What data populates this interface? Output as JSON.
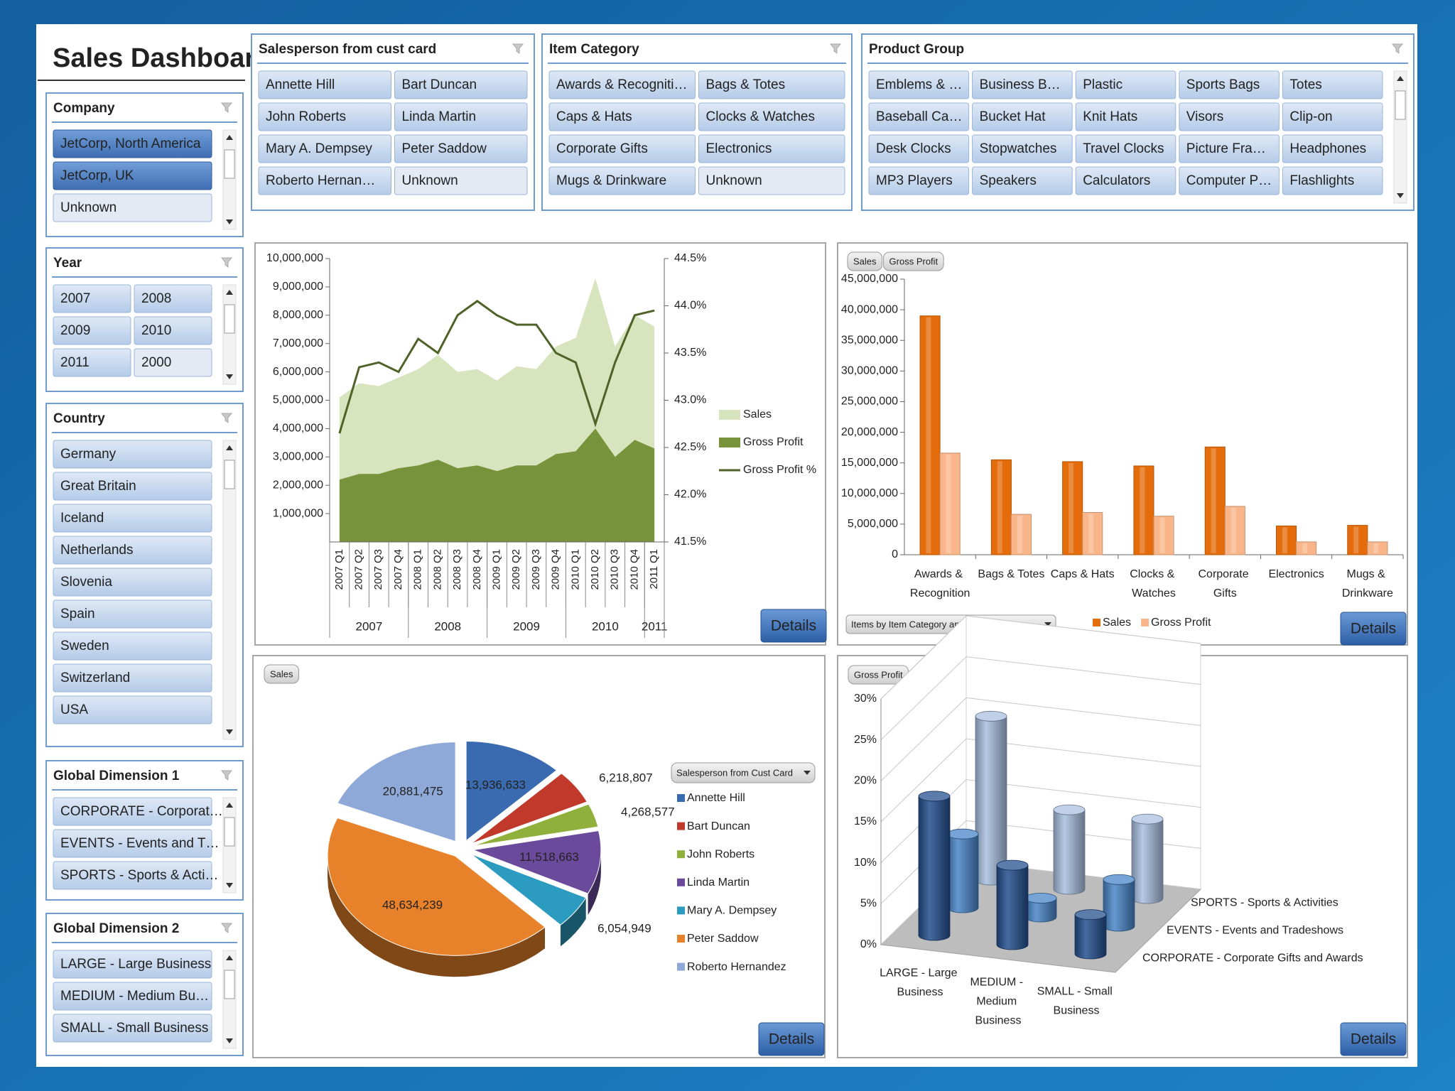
{
  "title": "Sales Dashboard",
  "slicers": [
    {
      "title": "Salesperson from cust card",
      "items": [
        "Annette Hill",
        "Bart Duncan",
        "John Roberts",
        "Linda Martin",
        "Mary A. Dempsey",
        "Peter Saddow",
        "Roberto Hernan…",
        "Unknown"
      ],
      "states": [
        "available",
        "available",
        "available",
        "available",
        "available",
        "available",
        "available",
        "empty"
      ]
    },
    {
      "title": "Item Category",
      "items": [
        "Awards & Recogniti…",
        "Bags & Totes",
        "Caps & Hats",
        "Clocks & Watches",
        "Corporate Gifts",
        "Electronics",
        "Mugs & Drinkware",
        "Unknown"
      ],
      "states": [
        "available",
        "available",
        "available",
        "available",
        "available",
        "available",
        "available",
        "empty"
      ]
    },
    {
      "title": "Product Group",
      "items": [
        "Emblems & …",
        "Business B…",
        "Plastic",
        "Sports Bags",
        "Totes",
        "Baseball Ca…",
        "Bucket Hat",
        "Knit Hats",
        "Visors",
        "Clip-on",
        "Desk Clocks",
        "Stopwatches",
        "Travel Clocks",
        "Picture Fra…",
        "Headphones",
        "MP3 Players",
        "Speakers",
        "Calculators",
        "Computer P…",
        "Flashlights"
      ],
      "states": [
        "available",
        "available",
        "available",
        "available",
        "available",
        "available",
        "available",
        "available",
        "available",
        "available",
        "available",
        "available",
        "available",
        "available",
        "available",
        "available",
        "available",
        "available",
        "available",
        "available"
      ]
    },
    {
      "title": "Company",
      "items": [
        "JetCorp, North America",
        "JetCorp, UK",
        "Unknown"
      ],
      "states": [
        "selected",
        "selected",
        "empty"
      ]
    },
    {
      "title": "Year",
      "items": [
        "2007",
        "2008",
        "2009",
        "2010",
        "2011",
        "2000"
      ],
      "states": [
        "available",
        "available",
        "available",
        "available",
        "available",
        "empty"
      ]
    },
    {
      "title": "Country",
      "items": [
        "Germany",
        "Great Britain",
        "Iceland",
        "Netherlands",
        "Slovenia",
        "Spain",
        "Sweden",
        "Switzerland",
        "USA"
      ],
      "states": [
        "available",
        "available",
        "available",
        "available",
        "available",
        "available",
        "available",
        "available",
        "available"
      ]
    },
    {
      "title": "Global Dimension 1",
      "items": [
        "CORPORATE - Corporat…",
        "EVENTS - Events and T…",
        "SPORTS - Sports & Acti…"
      ],
      "states": [
        "available",
        "available",
        "available"
      ]
    },
    {
      "title": "Global Dimension 2",
      "items": [
        "LARGE - Large Business",
        "MEDIUM - Medium Bu…",
        "SMALL - Small Business"
      ],
      "states": [
        "available",
        "available",
        "available"
      ]
    }
  ],
  "chart_data": [
    {
      "type": "area_line",
      "button": "Details",
      "categories": [
        "2007 Q1",
        "2007 Q2",
        "2007 Q3",
        "2007 Q4",
        "2008 Q1",
        "2008 Q2",
        "2008 Q3",
        "2008 Q4",
        "2009 Q1",
        "2009 Q2",
        "2009 Q3",
        "2009 Q4",
        "2010 Q1",
        "2010 Q2",
        "2010 Q3",
        "2010 Q4",
        "2011 Q1"
      ],
      "groups": [
        "2007",
        "2008",
        "2009",
        "2010",
        "2011"
      ],
      "series": [
        {
          "name": "Sales",
          "kind": "area",
          "color": "#d7e4bd",
          "values": [
            5100000,
            5600000,
            5500000,
            5800000,
            6100000,
            6600000,
            6000000,
            6100000,
            5700000,
            6200000,
            6100000,
            6900000,
            7200000,
            9300000,
            6900000,
            8000000,
            7600000
          ]
        },
        {
          "name": "Gross Profit",
          "kind": "area",
          "color": "#77933c",
          "values": [
            2200000,
            2400000,
            2400000,
            2600000,
            2700000,
            2900000,
            2600000,
            2700000,
            2500000,
            2700000,
            2700000,
            3100000,
            3200000,
            4000000,
            3000000,
            3600000,
            3300000
          ]
        },
        {
          "name": "Gross Profit %",
          "kind": "line",
          "axis": "y2",
          "color": "#4f6228",
          "values": [
            42.65,
            43.35,
            43.4,
            43.3,
            43.65,
            43.5,
            43.9,
            44.05,
            43.9,
            43.8,
            43.8,
            43.5,
            43.4,
            42.75,
            43.4,
            43.9,
            43.95
          ]
        }
      ],
      "ylim": [
        0,
        10000000
      ],
      "yticks": [
        {
          "value": 1000000,
          "label": "1,000,000"
        },
        {
          "value": 2000000,
          "label": "2,000,000"
        },
        {
          "value": 3000000,
          "label": "3,000,000"
        },
        {
          "value": 4000000,
          "label": "4,000,000"
        },
        {
          "value": 5000000,
          "label": "5,000,000"
        },
        {
          "value": 6000000,
          "label": "6,000,000"
        },
        {
          "value": 7000000,
          "label": "7,000,000"
        },
        {
          "value": 8000000,
          "label": "8,000,000"
        },
        {
          "value": 9000000,
          "label": "9,000,000"
        },
        {
          "value": 10000000,
          "label": "10,000,000"
        }
      ],
      "y2lim": [
        41.5,
        44.5
      ],
      "y2ticks": [
        {
          "value": 41.5,
          "label": "41.5%"
        },
        {
          "value": 42.0,
          "label": "42.0%"
        },
        {
          "value": 42.5,
          "label": "42.5%"
        },
        {
          "value": 43.0,
          "label": "43.0%"
        },
        {
          "value": 43.5,
          "label": "43.5%"
        },
        {
          "value": 44.0,
          "label": "44.0%"
        },
        {
          "value": 44.5,
          "label": "44.5%"
        }
      ]
    },
    {
      "type": "bar",
      "button": "Details",
      "field_buttons": [
        "Sales",
        "Gross Profit"
      ],
      "dropdown": "Items by Item Category and Product Group",
      "categories": [
        "Awards & Recognition",
        "Bags & Totes",
        "Caps & Hats",
        "Clocks & Watches",
        "Corporate Gifts",
        "Electronics",
        "Mugs & Drinkware"
      ],
      "series": [
        {
          "name": "Sales",
          "color": "#e46c0a",
          "values": [
            39000000,
            15500000,
            15200000,
            14500000,
            17600000,
            4700000,
            4800000
          ]
        },
        {
          "name": "Gross Profit",
          "color": "#f9b68a",
          "values": [
            16600000,
            6600000,
            6900000,
            6300000,
            7900000,
            2100000,
            2100000
          ]
        }
      ],
      "ylim": [
        0,
        45000000
      ],
      "yticks": [
        0,
        {
          "value": 5000000,
          "label": "5,000,000"
        },
        {
          "value": 10000000,
          "label": "10,000,000"
        },
        {
          "value": 15000000,
          "label": "15,000,000"
        },
        {
          "value": 20000000,
          "label": "20,000,000"
        },
        {
          "value": 25000000,
          "label": "25,000,000"
        },
        {
          "value": 30000000,
          "label": "30,000,000"
        },
        {
          "value": 35000000,
          "label": "35,000,000"
        },
        {
          "value": 40000000,
          "label": "40,000,000"
        },
        {
          "value": 45000000,
          "label": "45,000,000"
        }
      ]
    },
    {
      "type": "pie",
      "button": "Details",
      "field_buttons": [
        "Sales"
      ],
      "legend_title": "Salesperson from Cust Card",
      "categories": [
        "Annette Hill",
        "Bart Duncan",
        "John Roberts",
        "Linda Martin",
        "Mary A. Dempsey",
        "Peter Saddow",
        "Roberto Hernandez"
      ],
      "values": [
        13936633,
        6218807,
        4268577,
        11518663,
        6054949,
        48634239,
        20881475
      ],
      "value_labels": [
        "13,936,633",
        "6,218,807",
        "4,268,577",
        "11,518,663",
        "6,054,949",
        "48,634,239",
        "20,881,475"
      ],
      "colors": [
        "#3a6bb0",
        "#c0392b",
        "#8fb03a",
        "#6b4a9c",
        "#2b9bbf",
        "#e8822a",
        "#8ea9d8"
      ]
    },
    {
      "type": "bar3d",
      "button": "Details",
      "field_buttons": [
        "Gross Profit"
      ],
      "categories": [
        "LARGE - Large Business",
        "MEDIUM - Medium Business",
        "SMALL - Small Business"
      ],
      "series": [
        {
          "name": "CORPORATE - Corporate Gifts and Awards",
          "color": "#25508f",
          "values": [
            17,
            9.7,
            4.8
          ]
        },
        {
          "name": "EVENTS - Events and Tradeshows",
          "color": "#4a86c8",
          "values": [
            9,
            2.3,
            5.7
          ]
        },
        {
          "name": "SPORTS - Sports & Activities",
          "color": "#a9c0e0",
          "values": [
            20,
            9.7,
            9.7
          ]
        }
      ],
      "ylim": [
        0,
        30
      ],
      "yticks": [
        {
          "value": 0,
          "label": "0%"
        },
        {
          "value": 5,
          "label": "5%"
        },
        {
          "value": 10,
          "label": "10%"
        },
        {
          "value": 15,
          "label": "15%"
        },
        {
          "value": 20,
          "label": "20%"
        },
        {
          "value": 25,
          "label": "25%"
        },
        {
          "value": 30,
          "label": "30%"
        }
      ]
    }
  ]
}
